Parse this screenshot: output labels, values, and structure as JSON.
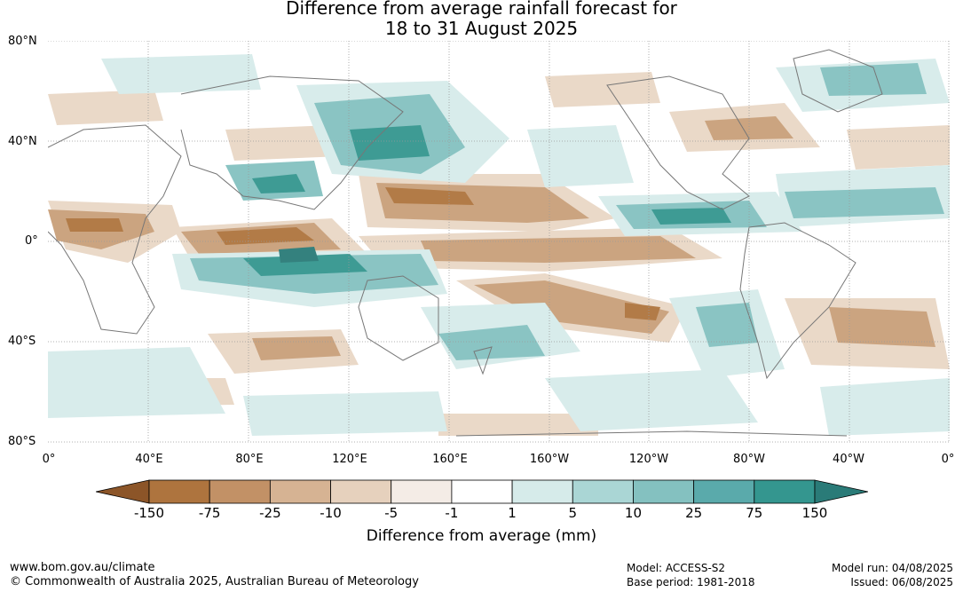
{
  "title": {
    "line1": "Difference from average rainfall forecast for",
    "line2": "18 to 31 August 2025"
  },
  "lat_labels": [
    "80°N",
    "40°N",
    "0°",
    "40°S",
    "80°S"
  ],
  "lon_labels": [
    "0°",
    "40°E",
    "80°E",
    "120°E",
    "160°E",
    "160°W",
    "120°W",
    "80°W",
    "40°W",
    "0°"
  ],
  "legend": {
    "title": "Difference from average (mm)",
    "ticks": [
      "-150",
      "-75",
      "-25",
      "-10",
      "-5",
      "-1",
      "1",
      "5",
      "10",
      "25",
      "75",
      "150"
    ],
    "colors": [
      "#8c5528",
      "#ae743e",
      "#c29166",
      "#d6b393",
      "#e6d1bd",
      "#f4ece6",
      "#ffffff",
      "#d6ebea",
      "#aad6d5",
      "#84c1c0",
      "#5aaaab",
      "#34968f",
      "#2a7b78"
    ]
  },
  "footer": {
    "website": "www.bom.gov.au/climate",
    "copyright": "© Commonwealth of Australia 2025, Australian Bureau of Meteorology",
    "model": "Model: ACCESS-S2",
    "base_period": "Base period: 1981-2018",
    "model_run": "Model run: 04/08/2025",
    "issued": "Issued: 06/08/2025"
  }
}
